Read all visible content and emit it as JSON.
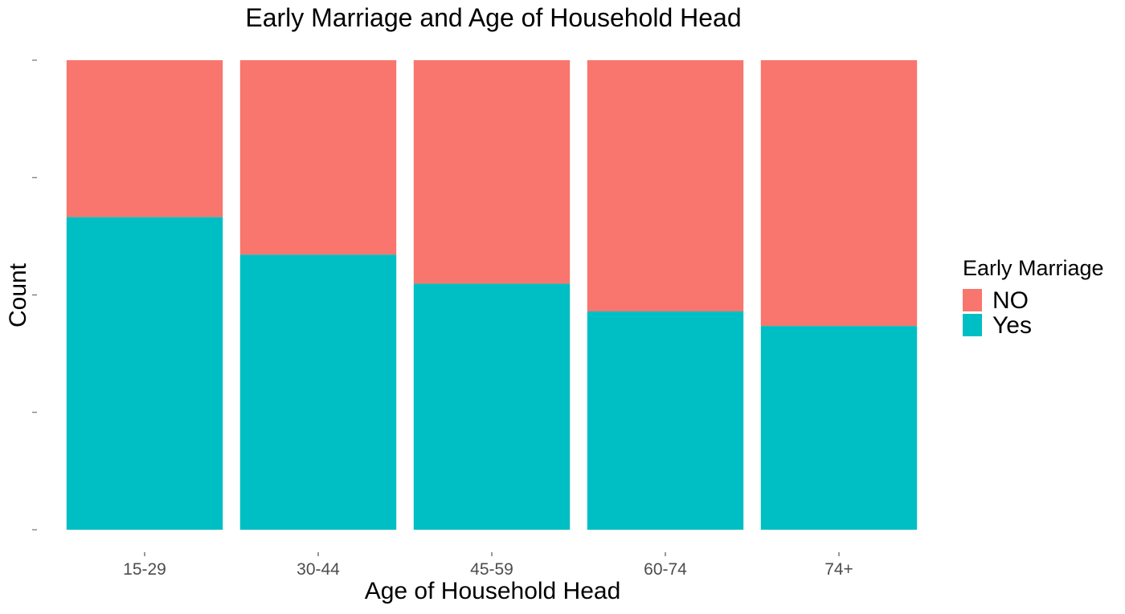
{
  "chart_data": {
    "type": "bar",
    "stacked": true,
    "normalized": true,
    "title": "Early Marriage and Age of Household Head",
    "xlabel": "Age of Household Head",
    "ylabel": "Count",
    "categories": [
      "15-29",
      "30-44",
      "45-59",
      "60-74",
      "74+"
    ],
    "series": [
      {
        "name": "Yes",
        "color": "#00BFC4",
        "values": [
          0.666,
          0.586,
          0.524,
          0.465,
          0.434
        ]
      },
      {
        "name": "NO",
        "color": "#F8766D",
        "values": [
          0.334,
          0.414,
          0.476,
          0.535,
          0.566
        ]
      }
    ],
    "ylim": [
      0,
      1
    ],
    "y_ticks": [
      0,
      0.25,
      0.5,
      0.75,
      1
    ],
    "legend": {
      "title": "Early Marriage",
      "position": "right",
      "items": [
        {
          "label": "NO",
          "color": "#F8766D"
        },
        {
          "label": "Yes",
          "color": "#00BFC4"
        }
      ]
    },
    "grid": false
  }
}
